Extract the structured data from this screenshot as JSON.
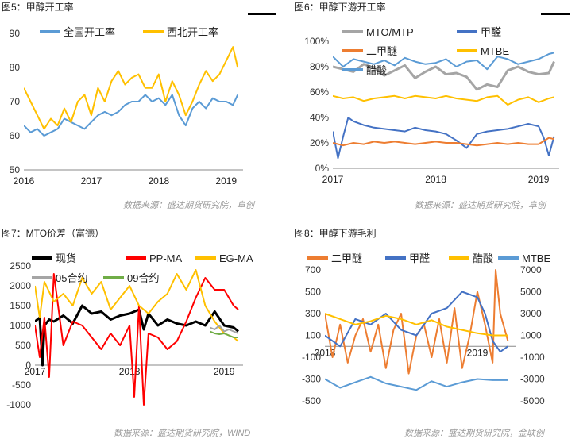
{
  "panels": [
    {
      "title": "图5：甲醇开工率",
      "source": "数据来源：盛达期货研究院，阜创",
      "chart_data": {
        "type": "line",
        "xlabel": "",
        "ylabel": "",
        "xlim": [
          2016.0,
          2019.25
        ],
        "ylim": [
          50,
          90
        ],
        "yticks": [
          50,
          60,
          70,
          80,
          90
        ],
        "xtick_labels": [
          "2016",
          "2017",
          "2018",
          "2019"
        ],
        "legend": "top",
        "series": [
          {
            "name": "全国开工率",
            "color": "#5b9bd5",
            "x": [
              2016.0,
              2016.1,
              2016.2,
              2016.3,
              2016.4,
              2016.5,
              2016.6,
              2016.7,
              2016.8,
              2016.9,
              2017.0,
              2017.1,
              2017.2,
              2017.3,
              2017.4,
              2017.5,
              2017.6,
              2017.7,
              2017.8,
              2017.9,
              2018.0,
              2018.1,
              2018.2,
              2018.3,
              2018.4,
              2018.5,
              2018.6,
              2018.7,
              2018.8,
              2018.9,
              2019.0,
              2019.1,
              2019.17
            ],
            "y": [
              63,
              61,
              62,
              60,
              61,
              62,
              65,
              64,
              63,
              62,
              64,
              66,
              67,
              66,
              67,
              69,
              70,
              70,
              72,
              70,
              71,
              69,
              72,
              66,
              63,
              68,
              70,
              68,
              71,
              70,
              70,
              69,
              72
            ]
          },
          {
            "name": "西北开工率",
            "color": "#ffc000",
            "x": [
              2016.0,
              2016.1,
              2016.2,
              2016.3,
              2016.4,
              2016.5,
              2016.6,
              2016.7,
              2016.8,
              2016.9,
              2017.0,
              2017.1,
              2017.2,
              2017.3,
              2017.4,
              2017.5,
              2017.6,
              2017.7,
              2017.8,
              2017.9,
              2018.0,
              2018.1,
              2018.2,
              2018.3,
              2018.4,
              2018.5,
              2018.6,
              2018.7,
              2018.8,
              2018.9,
              2019.0,
              2019.1,
              2019.17
            ],
            "y": [
              74,
              70,
              66,
              62,
              65,
              63,
              68,
              64,
              70,
              72,
              66,
              74,
              70,
              76,
              79,
              75,
              77,
              78,
              74,
              74,
              78,
              70,
              76,
              72,
              66,
              70,
              75,
              79,
              76,
              78,
              82,
              86,
              80
            ]
          }
        ]
      }
    },
    {
      "title": "图6：甲醇下游开工率",
      "source": "数据来源：盛达期货研究院，阜创",
      "chart_data": {
        "type": "line",
        "xlabel": "",
        "ylabel": "",
        "xlim": [
          2017.0,
          2019.2
        ],
        "ylim": [
          0,
          100
        ],
        "yticks": [
          0,
          20,
          40,
          60,
          80,
          100
        ],
        "ytick_format": "%",
        "xtick_labels": [
          "2017",
          "2018",
          "2019"
        ],
        "legend": "top",
        "series": [
          {
            "name": "MTO/MTP",
            "color": "#a5a5a5",
            "width": 3,
            "x": [
              2017.0,
              2017.1,
              2017.2,
              2017.3,
              2017.4,
              2017.5,
              2017.6,
              2017.7,
              2017.8,
              2017.9,
              2018.0,
              2018.1,
              2018.2,
              2018.3,
              2018.4,
              2018.5,
              2018.6,
              2018.7,
              2018.8,
              2018.9,
              2019.0,
              2019.1,
              2019.15
            ],
            "y": [
              80,
              78,
              76,
              82,
              79,
              73,
              77,
              81,
              71,
              76,
              80,
              74,
              75,
              72,
              62,
              66,
              64,
              77,
              80,
              76,
              74,
              75,
              84
            ]
          },
          {
            "name": "甲醛",
            "color": "#4472c4",
            "x": [
              2017.0,
              2017.05,
              2017.1,
              2017.15,
              2017.2,
              2017.3,
              2017.4,
              2017.5,
              2017.6,
              2017.7,
              2017.8,
              2017.9,
              2018.0,
              2018.1,
              2018.2,
              2018.3,
              2018.4,
              2018.5,
              2018.6,
              2018.7,
              2018.8,
              2018.9,
              2019.0,
              2019.05,
              2019.1,
              2019.15
            ],
            "y": [
              29,
              8,
              25,
              40,
              37,
              34,
              32,
              31,
              30,
              29,
              32,
              30,
              29,
              27,
              22,
              16,
              27,
              29,
              30,
              31,
              33,
              35,
              33,
              24,
              10,
              25
            ]
          },
          {
            "name": "二甲醚",
            "color": "#ed7d31",
            "x": [
              2017.0,
              2017.1,
              2017.2,
              2017.3,
              2017.4,
              2017.5,
              2017.6,
              2017.7,
              2017.8,
              2017.9,
              2018.0,
              2018.1,
              2018.2,
              2018.3,
              2018.4,
              2018.5,
              2018.6,
              2018.7,
              2018.8,
              2018.9,
              2019.0,
              2019.1,
              2019.15
            ],
            "y": [
              20,
              18,
              20,
              19,
              21,
              20,
              21,
              20,
              19,
              20,
              21,
              20,
              20,
              19,
              18,
              19,
              20,
              19,
              20,
              19,
              19,
              24,
              23
            ]
          },
          {
            "name": "MTBE",
            "color": "#ffc000",
            "x": [
              2017.0,
              2017.1,
              2017.2,
              2017.3,
              2017.4,
              2017.5,
              2017.6,
              2017.7,
              2017.8,
              2017.9,
              2018.0,
              2018.1,
              2018.2,
              2018.3,
              2018.4,
              2018.5,
              2018.6,
              2018.7,
              2018.8,
              2018.9,
              2019.0,
              2019.1,
              2019.15
            ],
            "y": [
              57,
              55,
              56,
              53,
              55,
              56,
              57,
              55,
              57,
              56,
              55,
              57,
              55,
              54,
              53,
              56,
              57,
              50,
              54,
              56,
              52,
              55,
              56
            ]
          },
          {
            "name": "醋酸",
            "color": "#5b9bd5",
            "x": [
              2017.0,
              2017.1,
              2017.2,
              2017.3,
              2017.4,
              2017.5,
              2017.6,
              2017.7,
              2017.8,
              2017.9,
              2018.0,
              2018.1,
              2018.2,
              2018.3,
              2018.4,
              2018.5,
              2018.6,
              2018.7,
              2018.8,
              2018.9,
              2019.0,
              2019.1,
              2019.15
            ],
            "y": [
              88,
              80,
              86,
              84,
              82,
              85,
              81,
              87,
              84,
              82,
              83,
              86,
              80,
              84,
              85,
              78,
              88,
              86,
              82,
              84,
              86,
              90,
              91
            ]
          }
        ]
      }
    },
    {
      "title": "图7：MTO价差（富德）",
      "source": "数据来源：盛达期货研究院，WIND",
      "chart_data": {
        "type": "line",
        "xlabel": "",
        "ylabel": "",
        "xlim": [
          2017.0,
          2019.2
        ],
        "ylim": [
          -1000,
          2500
        ],
        "yticks": [
          -1000,
          -500,
          0,
          500,
          1000,
          1500,
          2000,
          2500
        ],
        "xtick_labels": [
          "2017",
          "2018",
          "2019"
        ],
        "legend": "top",
        "series": [
          {
            "name": "现货",
            "color": "#000000",
            "width": 3,
            "x": [
              2017.0,
              2017.05,
              2017.08,
              2017.1,
              2017.15,
              2017.2,
              2017.3,
              2017.4,
              2017.5,
              2017.6,
              2017.7,
              2017.8,
              2017.9,
              2018.0,
              2018.1,
              2018.15,
              2018.2,
              2018.3,
              2018.4,
              2018.5,
              2018.6,
              2018.7,
              2018.8,
              2018.9,
              2019.0,
              2019.1,
              2019.15
            ],
            "y": [
              1100,
              1200,
              0,
              1000,
              1150,
              1100,
              1250,
              1050,
              1500,
              1300,
              1350,
              1150,
              1250,
              1300,
              1400,
              900,
              1300,
              1000,
              1150,
              1050,
              1000,
              1100,
              1000,
              1350,
              1000,
              950,
              850
            ]
          },
          {
            "name": "PP-MA",
            "color": "#ff0000",
            "x": [
              2017.0,
              2017.05,
              2017.1,
              2017.15,
              2017.2,
              2017.3,
              2017.4,
              2017.5,
              2017.6,
              2017.7,
              2017.8,
              2017.9,
              2018.0,
              2018.05,
              2018.1,
              2018.15,
              2018.2,
              2018.3,
              2018.4,
              2018.5,
              2018.6,
              2018.7,
              2018.8,
              2018.9,
              2019.0,
              2019.1,
              2019.15
            ],
            "y": [
              1000,
              200,
              1200,
              -300,
              2300,
              500,
              1100,
              1000,
              700,
              400,
              800,
              500,
              1000,
              -800,
              1500,
              -1000,
              800,
              700,
              400,
              600,
              1100,
              1700,
              2200,
              1900,
              1900,
              1500,
              1400
            ]
          },
          {
            "name": "EG-MA",
            "color": "#ffc000",
            "x": [
              2017.0,
              2017.05,
              2017.1,
              2017.2,
              2017.3,
              2017.4,
              2017.5,
              2017.6,
              2017.7,
              2017.8,
              2017.9,
              2018.0,
              2018.1,
              2018.2,
              2018.3,
              2018.4,
              2018.5,
              2018.6,
              2018.7,
              2018.8,
              2018.9,
              2019.0,
              2019.1,
              2019.15
            ],
            "y": [
              2000,
              1200,
              2100,
              1600,
              1800,
              1500,
              2200,
              1800,
              2100,
              1400,
              1700,
              2000,
              1500,
              1300,
              1600,
              1800,
              2300,
              1900,
              2400,
              1500,
              1100,
              800,
              700,
              600
            ]
          },
          {
            "name": "05合约",
            "color": "#a5a5a5",
            "x": [
              2018.85,
              2018.9,
              2018.95,
              2019.0,
              2019.05,
              2019.1,
              2019.15
            ],
            "y": [
              950,
              900,
              1000,
              850,
              900,
              850,
              800
            ]
          },
          {
            "name": "09合约",
            "color": "#70ad47",
            "x": [
              2018.85,
              2018.9,
              2018.95,
              2019.0,
              2019.05,
              2019.1,
              2019.15
            ],
            "y": [
              850,
              800,
              780,
              800,
              750,
              700,
              700
            ]
          }
        ]
      }
    },
    {
      "title": "图8：甲醇下游毛利",
      "source": "数据来源：盛达期货研究院，金联创",
      "chart_data": {
        "type": "line",
        "xlabel": "",
        "ylabel": "",
        "xlim": [
          2018.0,
          2019.25
        ],
        "ylim": [
          -500,
          700
        ],
        "yticks": [
          -500,
          -300,
          -100,
          100,
          300,
          500,
          700
        ],
        "y2lim": [
          -5000,
          7000
        ],
        "y2ticks": [
          -5000,
          -3000,
          -1000,
          1000,
          3000,
          5000,
          7000
        ],
        "xtick_labels": [
          "2018",
          "2019"
        ],
        "legend": "top",
        "series": [
          {
            "name": "二甲醚",
            "color": "#ed7d31",
            "axis": "left",
            "x": [
              2018.0,
              2018.05,
              2018.1,
              2018.15,
              2018.2,
              2018.25,
              2018.3,
              2018.35,
              2018.4,
              2018.45,
              2018.5,
              2018.55,
              2018.6,
              2018.65,
              2018.7,
              2018.75,
              2018.8,
              2018.85,
              2018.9,
              2018.95,
              2019.0,
              2019.05,
              2019.1,
              2019.12,
              2019.15,
              2019.2
            ],
            "y": [
              300,
              -100,
              200,
              -150,
              100,
              250,
              -50,
              200,
              -200,
              150,
              300,
              -250,
              100,
              200,
              -100,
              250,
              -150,
              350,
              -200,
              100,
              500,
              200,
              -150,
              700,
              300,
              50
            ]
          },
          {
            "name": "甲醛",
            "color": "#4472c4",
            "axis": "left",
            "x": [
              2018.0,
              2018.1,
              2018.2,
              2018.3,
              2018.4,
              2018.5,
              2018.6,
              2018.7,
              2018.8,
              2018.9,
              2019.0,
              2019.05,
              2019.1,
              2019.15,
              2019.2
            ],
            "y": [
              100,
              0,
              250,
              200,
              300,
              150,
              100,
              300,
              350,
              500,
              450,
              300,
              50,
              -50,
              0
            ]
          },
          {
            "name": "醋酸",
            "color": "#ffc000",
            "axis": "right",
            "x": [
              2018.0,
              2018.1,
              2018.2,
              2018.3,
              2018.4,
              2018.5,
              2018.6,
              2018.7,
              2018.8,
              2018.9,
              2019.0,
              2019.1,
              2019.2
            ],
            "y": [
              3000,
              2500,
              2000,
              2300,
              2800,
              2500,
              2000,
              2400,
              1800,
              1500,
              1200,
              1000,
              1000
            ]
          },
          {
            "name": "MTBE",
            "color": "#5b9bd5",
            "axis": "right",
            "x": [
              2018.0,
              2018.1,
              2018.2,
              2018.3,
              2018.4,
              2018.5,
              2018.6,
              2018.7,
              2018.8,
              2018.9,
              2019.0,
              2019.1,
              2019.2
            ],
            "y": [
              -3000,
              -3800,
              -3300,
              -2800,
              -3400,
              -3700,
              -4000,
              -3200,
              -3700,
              -3300,
              -3000,
              -3100,
              -3100
            ]
          }
        ]
      }
    }
  ]
}
